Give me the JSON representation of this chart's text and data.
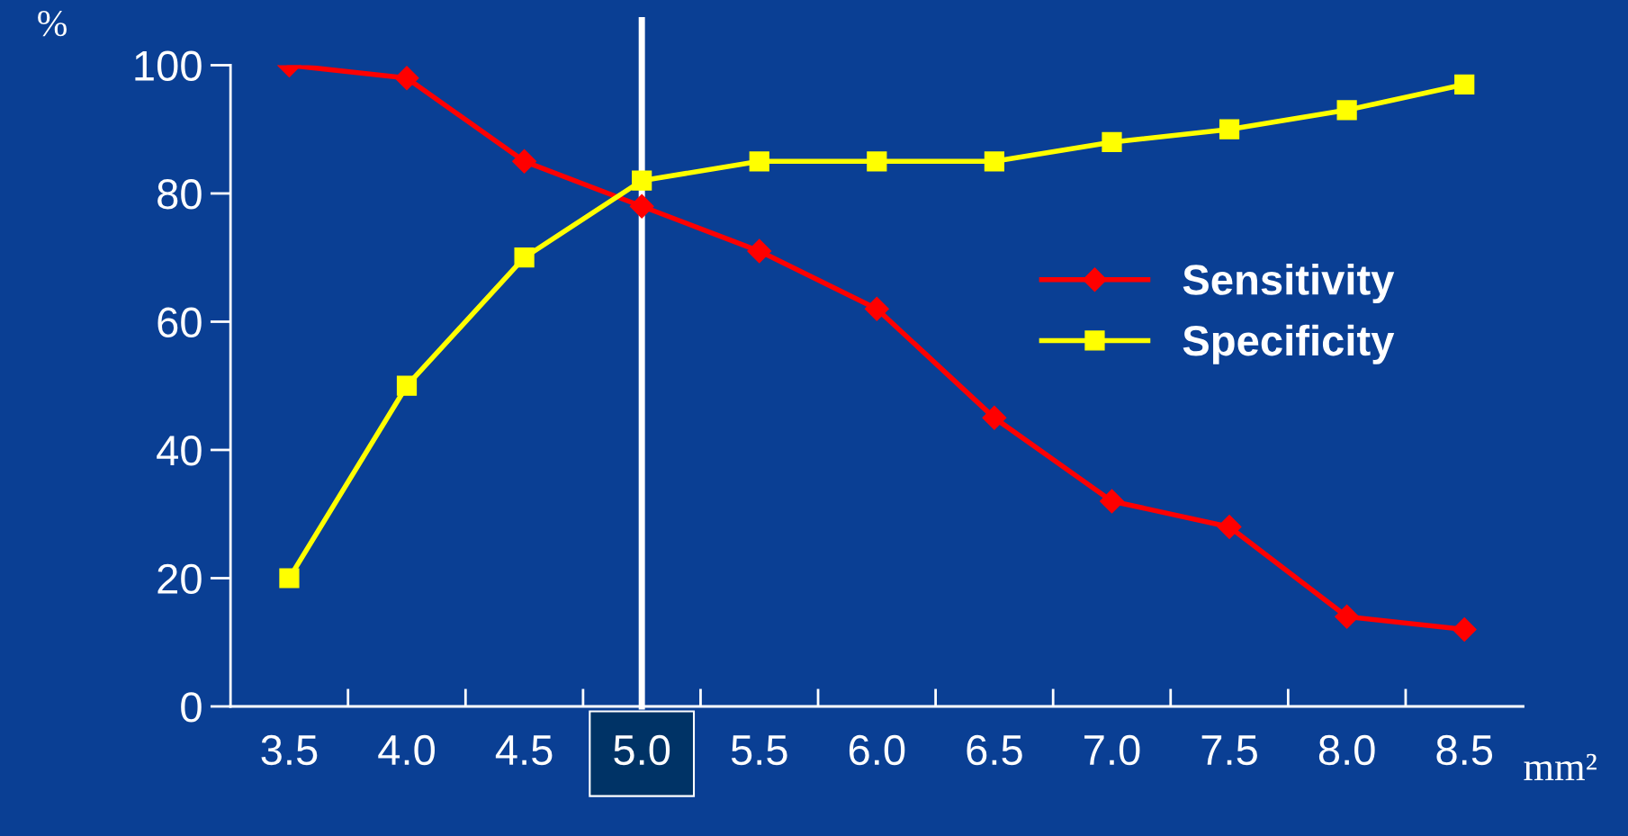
{
  "chart_data": {
    "type": "line",
    "xlabel": "mm²",
    "ylabel": "%",
    "categories": [
      "3.5",
      "4.0",
      "4.5",
      "5.0",
      "5.5",
      "6.0",
      "6.5",
      "7.0",
      "7.5",
      "8.0",
      "8.5"
    ],
    "series": [
      {
        "name": "Sensitivity",
        "color": "#ff0000",
        "marker": "diamond",
        "values": [
          100,
          98,
          85,
          78,
          71,
          62,
          45,
          32,
          28,
          14,
          12
        ]
      },
      {
        "name": "Specificity",
        "color": "#ffff00",
        "marker": "square",
        "values": [
          20,
          50,
          70,
          82,
          85,
          85,
          85,
          88,
          90,
          93,
          97
        ]
      }
    ],
    "ylim": [
      0,
      100
    ],
    "yticks": [
      0,
      20,
      40,
      60,
      80,
      100
    ],
    "ref_lines": [
      {
        "axis": "x",
        "value": "5.0",
        "color": "#ffffff",
        "line_style": "solid"
      }
    ],
    "grid": false,
    "legend": "top right",
    "line_style": "solid"
  }
}
